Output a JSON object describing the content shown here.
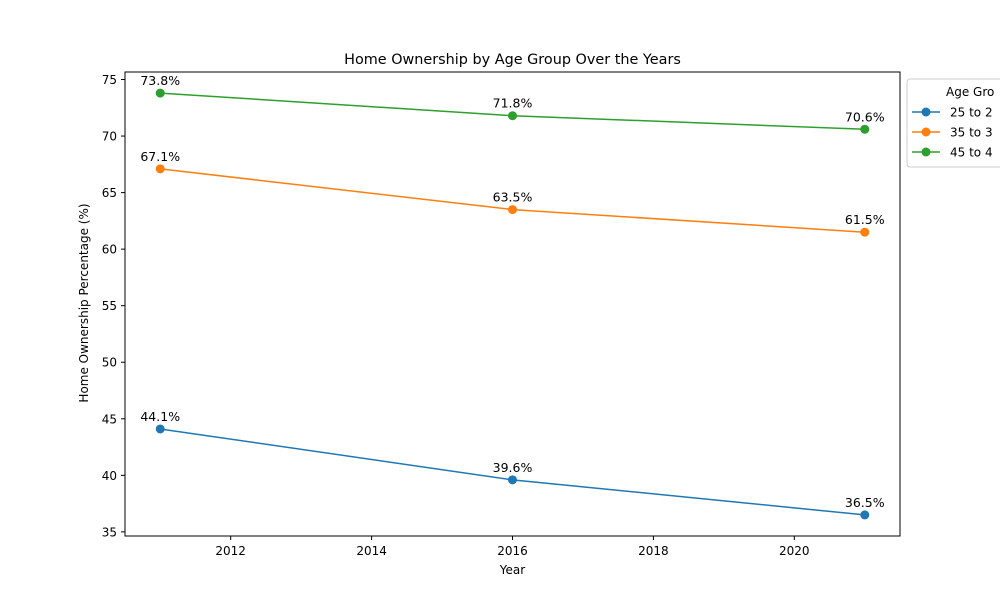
{
  "chart_data": {
    "type": "line",
    "title": "Home Ownership by Age Group Over the Years",
    "xlabel": "Year",
    "ylabel": "Home Ownership Percentage (%)",
    "x": [
      2011,
      2016,
      2021
    ],
    "xlim": [
      2010.5,
      2021.5
    ],
    "ylim": [
      34.635,
      75.665
    ],
    "x_ticks": [
      "2012",
      "2014",
      "2016",
      "2018",
      "2020"
    ],
    "y_ticks": [
      "35",
      "40",
      "45",
      "50",
      "55",
      "60",
      "65",
      "70",
      "75"
    ],
    "grid": false,
    "legend": {
      "title": "Age Gro",
      "placement": "outside-top-right"
    },
    "series": [
      {
        "name": "25 to 2",
        "color": "#1f77b4",
        "values": [
          44.1,
          39.6,
          36.5
        ],
        "labels": [
          "44.1%",
          "39.6%",
          "36.5%"
        ]
      },
      {
        "name": "35 to 3",
        "color": "#ff7f0e",
        "values": [
          67.1,
          63.5,
          61.5
        ],
        "labels": [
          "67.1%",
          "63.5%",
          "61.5%"
        ]
      },
      {
        "name": "45 to 4",
        "color": "#2ca02c",
        "values": [
          73.8,
          71.8,
          70.6
        ],
        "labels": [
          "73.8%",
          "71.8%",
          "70.6%"
        ]
      }
    ]
  }
}
